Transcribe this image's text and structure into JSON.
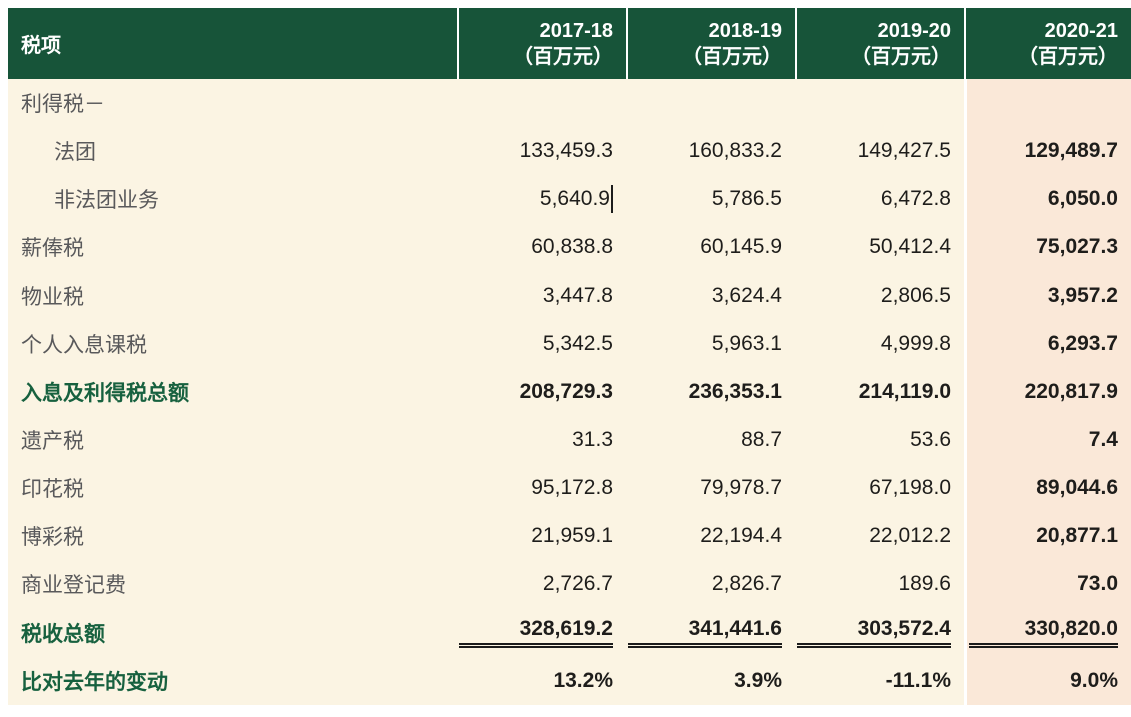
{
  "colors": {
    "header_green": "#175439",
    "body_cream": "#FBF4E3",
    "highlight_pink": "#FAE8D8",
    "accent_text_green": "#17613F",
    "label_gray": "#59595B",
    "number_black": "#1E1D1B"
  },
  "table": {
    "header": {
      "label": "税项",
      "columns": [
        {
          "year": "2017-18",
          "unit": "（百万元）"
        },
        {
          "year": "2018-19",
          "unit": "（百万元）"
        },
        {
          "year": "2019-20",
          "unit": "（百万元）"
        },
        {
          "year": "2020-21",
          "unit": "（百万元）"
        }
      ]
    },
    "rows": [
      {
        "label": "利得税－",
        "indent": false,
        "emphasis": false,
        "double_rule": false,
        "caret": null,
        "values": [
          "",
          "",
          "",
          ""
        ]
      },
      {
        "label": "法团",
        "indent": true,
        "emphasis": false,
        "double_rule": false,
        "caret": null,
        "values": [
          "133,459.3",
          "160,833.2",
          "149,427.5",
          "129,489.7"
        ]
      },
      {
        "label": "非法团业务",
        "indent": true,
        "emphasis": false,
        "double_rule": false,
        "caret": 0,
        "values": [
          "5,640.9",
          "5,786.5",
          "6,472.8",
          "6,050.0"
        ]
      },
      {
        "label": "薪俸税",
        "indent": false,
        "emphasis": false,
        "double_rule": false,
        "caret": null,
        "values": [
          "60,838.8",
          "60,145.9",
          "50,412.4",
          "75,027.3"
        ]
      },
      {
        "label": "物业税",
        "indent": false,
        "emphasis": false,
        "double_rule": false,
        "caret": null,
        "values": [
          "3,447.8",
          "3,624.4",
          "2,806.5",
          "3,957.2"
        ]
      },
      {
        "label": "个人入息课税",
        "indent": false,
        "emphasis": false,
        "double_rule": false,
        "caret": null,
        "values": [
          "5,342.5",
          "5,963.1",
          "4,999.8",
          "6,293.7"
        ]
      },
      {
        "label": "入息及利得税总额",
        "indent": false,
        "emphasis": true,
        "double_rule": false,
        "caret": null,
        "values": [
          "208,729.3",
          "236,353.1",
          "214,119.0",
          "220,817.9"
        ]
      },
      {
        "label": "遗产税",
        "indent": false,
        "emphasis": false,
        "double_rule": false,
        "caret": null,
        "values": [
          "31.3",
          "88.7",
          "53.6",
          "7.4"
        ]
      },
      {
        "label": "印花税",
        "indent": false,
        "emphasis": false,
        "double_rule": false,
        "caret": null,
        "values": [
          "95,172.8",
          "79,978.7",
          "67,198.0",
          "89,044.6"
        ]
      },
      {
        "label": "博彩税",
        "indent": false,
        "emphasis": false,
        "double_rule": false,
        "caret": null,
        "values": [
          "21,959.1",
          "22,194.4",
          "22,012.2",
          "20,877.1"
        ]
      },
      {
        "label": "商业登记费",
        "indent": false,
        "emphasis": false,
        "double_rule": false,
        "caret": null,
        "values": [
          "2,726.7",
          "2,826.7",
          "189.6",
          "73.0"
        ]
      },
      {
        "label": "税收总额",
        "indent": false,
        "emphasis": true,
        "double_rule": true,
        "caret": null,
        "values": [
          "328,619.2",
          "341,441.6",
          "303,572.4",
          "330,820.0"
        ]
      },
      {
        "label": "比对去年的变动",
        "indent": false,
        "emphasis": true,
        "double_rule": false,
        "caret": null,
        "values": [
          "13.2%",
          "3.9%",
          "-11.1%",
          "9.0%"
        ]
      }
    ]
  }
}
